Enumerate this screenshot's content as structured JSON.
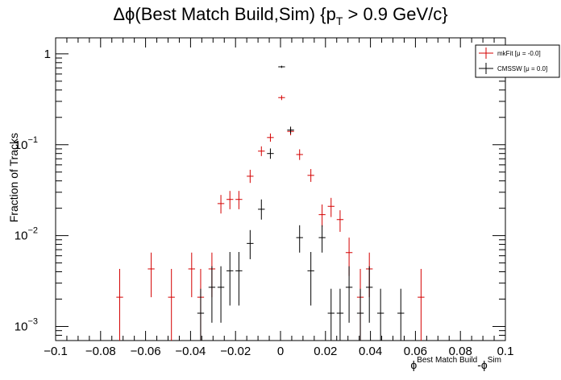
{
  "chart_data": {
    "type": "scatter",
    "title": "Δϕ(Best Match Build,Sim) {p_T > 0.9 GeV/c}",
    "title_parts": {
      "main": "Δϕ(Best Match Build,Sim) {p",
      "sub": "T",
      "rest": " > 0.9 GeV/c}"
    },
    "xlabel_parts": {
      "phi1": "ϕ",
      "sup1": "Best Match Build",
      "mid": "-ϕ",
      "sup2": "Sim"
    },
    "ylabel": "Fraction of Tracks",
    "xlim": [
      -0.1,
      0.1
    ],
    "ylim": [
      0.0007,
      1.5
    ],
    "y_scale": "log",
    "grid": false,
    "legend_position": "top-right",
    "x_ticks": [
      {
        "v": -0.1,
        "label": "−0.1"
      },
      {
        "v": -0.08,
        "label": "−0.08"
      },
      {
        "v": -0.06,
        "label": "−0.06"
      },
      {
        "v": -0.04,
        "label": "−0.04"
      },
      {
        "v": -0.02,
        "label": "−0.02"
      },
      {
        "v": 0,
        "label": "0"
      },
      {
        "v": 0.02,
        "label": "0.02"
      },
      {
        "v": 0.04,
        "label": "0.04"
      },
      {
        "v": 0.06,
        "label": "0.06"
      },
      {
        "v": 0.08,
        "label": "0.08"
      },
      {
        "v": 0.1,
        "label": "0.1"
      }
    ],
    "y_ticks": [
      {
        "v": 1,
        "base": "1",
        "exp": ""
      },
      {
        "v": 0.1,
        "base": "10",
        "exp": "−1"
      },
      {
        "v": 0.01,
        "base": "10",
        "exp": "−2"
      },
      {
        "v": 0.001,
        "base": "10",
        "exp": "−3"
      }
    ],
    "bin_width": 0.003,
    "series": [
      {
        "name": "mkFit  [μ = -0.0]",
        "color": "#d40000",
        "points": [
          {
            "x": -0.0715,
            "y": 0.0021,
            "lo": 0.0007,
            "hi": 0.0043
          },
          {
            "x": -0.0575,
            "y": 0.0043,
            "lo": 0.0021,
            "hi": 0.0065
          },
          {
            "x": -0.0485,
            "y": 0.0021,
            "lo": 0.0007,
            "hi": 0.0043
          },
          {
            "x": -0.0395,
            "y": 0.0043,
            "lo": 0.0021,
            "hi": 0.0065
          },
          {
            "x": -0.0355,
            "y": 0.0021,
            "lo": 0.0007,
            "hi": 0.0043
          },
          {
            "x": -0.0305,
            "y": 0.0043,
            "lo": 0.0021,
            "hi": 0.0065
          },
          {
            "x": -0.0265,
            "y": 0.0225,
            "lo": 0.0175,
            "hi": 0.028
          },
          {
            "x": -0.0225,
            "y": 0.025,
            "lo": 0.0195,
            "hi": 0.031
          },
          {
            "x": -0.0185,
            "y": 0.025,
            "lo": 0.0195,
            "hi": 0.031
          },
          {
            "x": -0.0135,
            "y": 0.045,
            "lo": 0.038,
            "hi": 0.053
          },
          {
            "x": -0.0085,
            "y": 0.085,
            "lo": 0.075,
            "hi": 0.096
          },
          {
            "x": -0.0045,
            "y": 0.12,
            "lo": 0.108,
            "hi": 0.133
          },
          {
            "x": 0.0005,
            "y": 0.33,
            "lo": 0.31,
            "hi": 0.35
          },
          {
            "x": 0.0045,
            "y": 0.14,
            "lo": 0.127,
            "hi": 0.154
          },
          {
            "x": 0.0085,
            "y": 0.078,
            "lo": 0.068,
            "hi": 0.089
          },
          {
            "x": 0.0135,
            "y": 0.046,
            "lo": 0.039,
            "hi": 0.054
          },
          {
            "x": 0.0185,
            "y": 0.017,
            "lo": 0.0125,
            "hi": 0.022
          },
          {
            "x": 0.0225,
            "y": 0.021,
            "lo": 0.016,
            "hi": 0.026
          },
          {
            "x": 0.0265,
            "y": 0.015,
            "lo": 0.011,
            "hi": 0.019
          },
          {
            "x": 0.0305,
            "y": 0.0065,
            "lo": 0.0036,
            "hi": 0.0095
          },
          {
            "x": 0.0355,
            "y": 0.0021,
            "lo": 0.0007,
            "hi": 0.0043
          },
          {
            "x": 0.0395,
            "y": 0.0043,
            "lo": 0.0021,
            "hi": 0.0065
          },
          {
            "x": 0.0625,
            "y": 0.0021,
            "lo": 0.0007,
            "hi": 0.0043
          }
        ]
      },
      {
        "name": "CMSSW  [μ =  0.0]",
        "color": "#000000",
        "points": [
          {
            "x": -0.0355,
            "y": 0.0014,
            "lo": 0.0007,
            "hi": 0.0026
          },
          {
            "x": -0.0305,
            "y": 0.0027,
            "lo": 0.0011,
            "hi": 0.0046
          },
          {
            "x": -0.0265,
            "y": 0.0027,
            "lo": 0.0011,
            "hi": 0.0046
          },
          {
            "x": -0.0225,
            "y": 0.0041,
            "lo": 0.0017,
            "hi": 0.0066
          },
          {
            "x": -0.0185,
            "y": 0.0041,
            "lo": 0.0017,
            "hi": 0.0066
          },
          {
            "x": -0.0135,
            "y": 0.0082,
            "lo": 0.0055,
            "hi": 0.0115
          },
          {
            "x": -0.0085,
            "y": 0.0195,
            "lo": 0.015,
            "hi": 0.025
          },
          {
            "x": -0.0045,
            "y": 0.08,
            "lo": 0.07,
            "hi": 0.091
          },
          {
            "x": 0.0005,
            "y": 0.72,
            "lo": 0.7,
            "hi": 0.74
          },
          {
            "x": 0.0045,
            "y": 0.145,
            "lo": 0.132,
            "hi": 0.158
          },
          {
            "x": 0.0085,
            "y": 0.0095,
            "lo": 0.0065,
            "hi": 0.013
          },
          {
            "x": 0.0135,
            "y": 0.0041,
            "lo": 0.0017,
            "hi": 0.0066
          },
          {
            "x": 0.0185,
            "y": 0.0095,
            "lo": 0.0065,
            "hi": 0.013
          },
          {
            "x": 0.0225,
            "y": 0.0014,
            "lo": 0.0007,
            "hi": 0.0026
          },
          {
            "x": 0.0265,
            "y": 0.0014,
            "lo": 0.0007,
            "hi": 0.0026
          },
          {
            "x": 0.0305,
            "y": 0.0027,
            "lo": 0.0011,
            "hi": 0.0046
          },
          {
            "x": 0.0355,
            "y": 0.0014,
            "lo": 0.0007,
            "hi": 0.0026
          },
          {
            "x": 0.0395,
            "y": 0.0027,
            "lo": 0.0011,
            "hi": 0.0046
          },
          {
            "x": 0.0445,
            "y": 0.0014,
            "lo": 0.0007,
            "hi": 0.0026
          },
          {
            "x": 0.0535,
            "y": 0.0014,
            "lo": 0.0007,
            "hi": 0.0026
          }
        ]
      }
    ]
  }
}
